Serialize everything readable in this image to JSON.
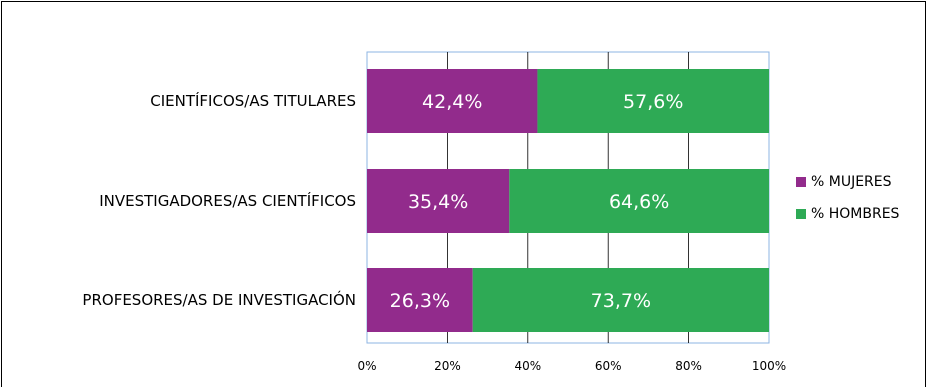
{
  "chart_data": {
    "type": "bar",
    "orientation": "horizontal",
    "stacked": true,
    "categories": [
      "CIENTÍFICOS/AS TITULARES",
      "INVESTIGADORES/AS CIENTÍFICOS",
      "PROFESORES/AS DE INVESTIGACIÓN"
    ],
    "series": [
      {
        "name": "% MUJERES",
        "color": "#922B8C",
        "values": [
          42.4,
          35.4,
          26.3
        ],
        "labels": [
          "42,4%",
          "35,4%",
          "26,3%"
        ]
      },
      {
        "name": "% HOMBRES",
        "color": "#2EAA55",
        "values": [
          57.6,
          64.6,
          73.7
        ],
        "labels": [
          "57,6%",
          "64,6%",
          "73,7%"
        ]
      }
    ],
    "xlim": [
      0,
      100
    ],
    "xticks": [
      "0%",
      "20%",
      "40%",
      "60%",
      "80%",
      "100%"
    ],
    "grid": true,
    "legend_position": "right"
  }
}
